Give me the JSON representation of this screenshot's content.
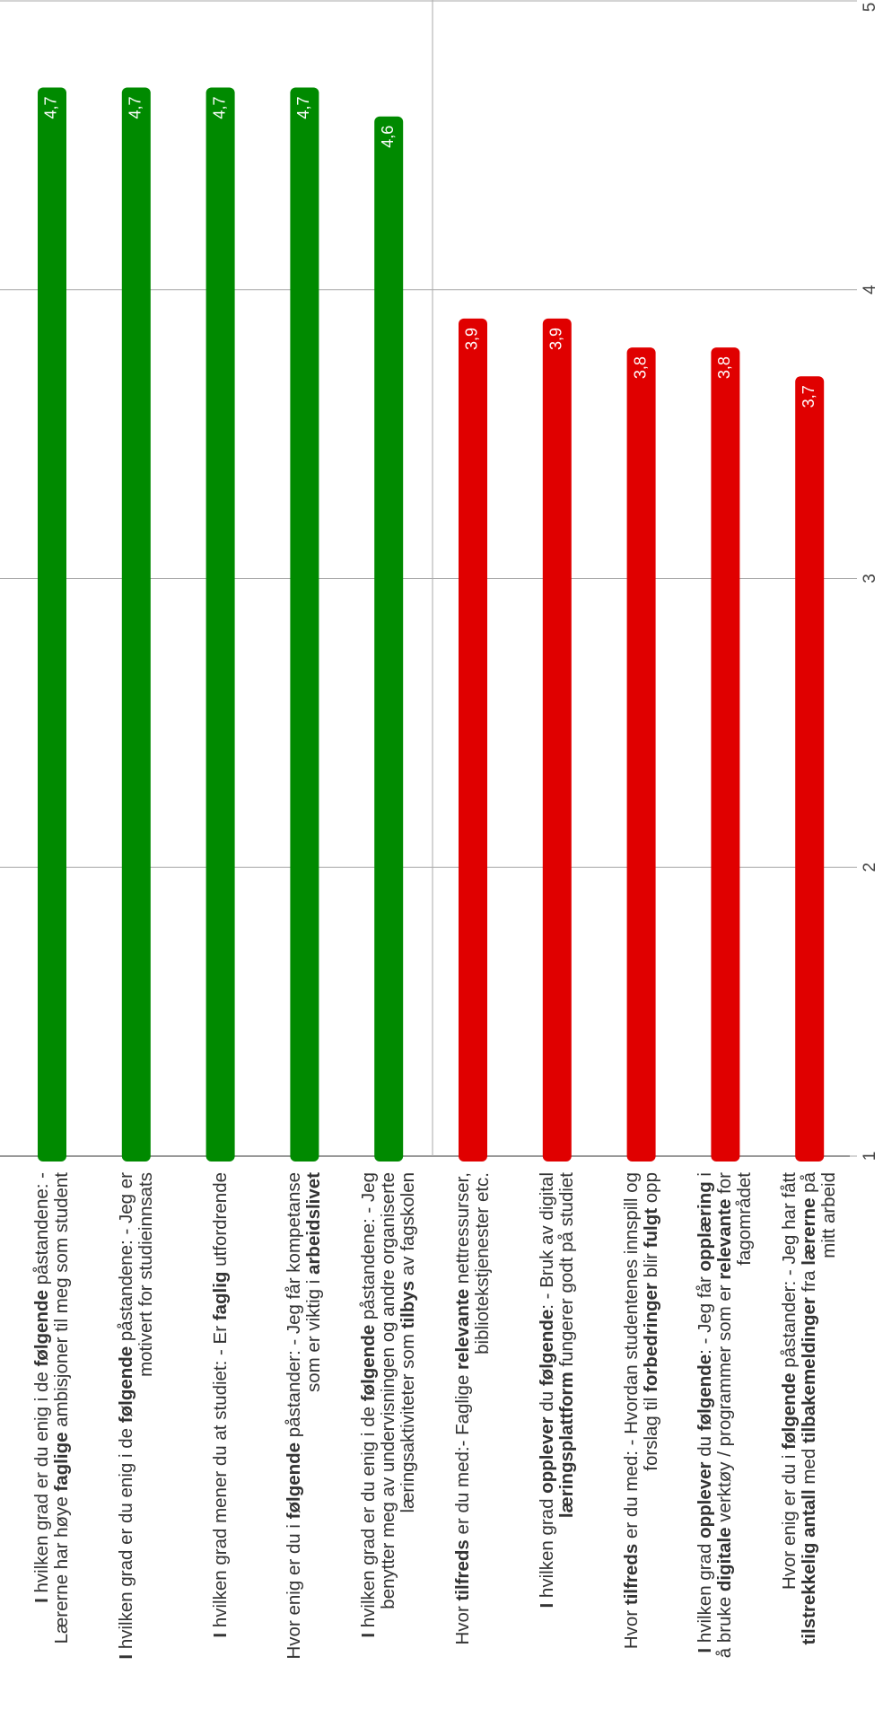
{
  "chart_data": {
    "type": "bar",
    "orientation": "horizontal",
    "categories": [
      "I hvilken grad er du enig i de følgende påstandene: - Lærerne har høye faglige ambisjoner til meg som student",
      "I hvilken grad er du enig i de følgende påstandene: - Jeg er motivert for studieinnsats",
      "I hvilken grad mener du at studiet: - Er faglig utfordrende",
      "Hvor enig er du i følgende påstander: - Jeg får kompetanse som er viktig i arbeidslivet",
      "I hvilken grad er du enig i de følgende påstandene: - Jeg benytter meg av undervisningen og andre organiserte læringsaktiviteter som tilbys av fagskolen",
      "Hvor tilfreds er du med:- Faglige relevante nettressurser, bibliotekstjenester etc.",
      "I hvilken grad opplever du følgende: - Bruk av digital læringsplattform fungerer godt på studiet",
      "Hvor tilfreds er du med: - Hvordan studentenes innspill og forslag til forbedringer blir fulgt opp",
      "I hvilken grad opplever du følgende: - Jeg får opplæring i å bruke digitale verktøy / programmer som er relevante for fagområdet",
      "Hvor enig er du i følgende påstander: - Jeg har fått tilstrekkelig antall med tilbakemeldinger fra lærerne på mitt arbeid"
    ],
    "values": [
      4.7,
      4.7,
      4.7,
      4.7,
      4.6,
      3.9,
      3.9,
      3.8,
      3.8,
      3.7
    ],
    "value_labels": [
      "4,7",
      "4,7",
      "4,7",
      "4,7",
      "4,6",
      "3,9",
      "3,9",
      "3,8",
      "3,8",
      "3,7"
    ],
    "bar_groups": [
      "top",
      "top",
      "top",
      "top",
      "top",
      "bottom",
      "bottom",
      "bottom",
      "bottom",
      "bottom"
    ],
    "ticks": [
      1,
      2,
      3,
      4,
      5
    ],
    "tick_labels": [
      "1",
      "2",
      "3",
      "4",
      "5"
    ],
    "xlim": [
      1,
      5
    ],
    "grid": true,
    "legend": "none",
    "title": "",
    "xlabel": "",
    "ylabel": "",
    "colors": {
      "top": "#008a00",
      "bottom": "#e00000",
      "grid": "#aaaaaa",
      "axis": "#999999",
      "tick_text": "#444444",
      "value_text": "#ffffff",
      "label_text": "#333333"
    },
    "bold_words": [
      "I",
      "følgende",
      "faglige",
      "få",
      "faglig",
      "arbeidslivet",
      "tilbys",
      "tilfreds",
      "relevante",
      "biblioteks",
      "opplever",
      "læringsplattform",
      "forbedringer",
      "fulgt",
      "opplæring",
      "digitale",
      "relevante",
      "tilstrekkelig",
      "antall",
      "tilbakemeldinger",
      "lærerne"
    ]
  }
}
